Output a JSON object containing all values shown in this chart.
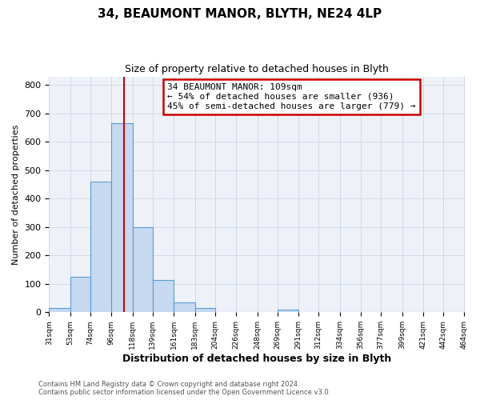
{
  "title": "34, BEAUMONT MANOR, BLYTH, NE24 4LP",
  "subtitle": "Size of property relative to detached houses in Blyth",
  "xlabel": "Distribution of detached houses by size in Blyth",
  "ylabel": "Number of detached properties",
  "bar_edges": [
    31,
    53,
    74,
    96,
    118,
    139,
    161,
    183,
    204,
    226,
    248,
    269,
    291,
    312,
    334,
    356,
    377,
    399,
    421,
    442,
    464
  ],
  "bar_heights": [
    15,
    125,
    460,
    665,
    300,
    115,
    35,
    15,
    0,
    0,
    0,
    10,
    0,
    0,
    0,
    0,
    0,
    0,
    0,
    0
  ],
  "bar_color": "#c6d9f0",
  "bar_edge_color": "#5b9bd5",
  "property_line_x": 109,
  "property_line_color": "#cc0000",
  "ylim": [
    0,
    830
  ],
  "yticks": [
    0,
    100,
    200,
    300,
    400,
    500,
    600,
    700,
    800
  ],
  "annotation_text": "34 BEAUMONT MANOR: 109sqm\n← 54% of detached houses are smaller (936)\n45% of semi-detached houses are larger (779) →",
  "annotation_box_facecolor": "#ffffff",
  "annotation_box_edgecolor": "#cc0000",
  "footer_line1": "Contains HM Land Registry data © Crown copyright and database right 2024.",
  "footer_line2": "Contains public sector information licensed under the Open Government Licence v3.0.",
  "tick_labels": [
    "31sqm",
    "53sqm",
    "74sqm",
    "96sqm",
    "118sqm",
    "139sqm",
    "161sqm",
    "183sqm",
    "204sqm",
    "226sqm",
    "248sqm",
    "269sqm",
    "291sqm",
    "312sqm",
    "334sqm",
    "356sqm",
    "377sqm",
    "399sqm",
    "421sqm",
    "442sqm",
    "464sqm"
  ],
  "grid_color": "#d0d8e8",
  "fig_background_color": "#ffffff",
  "axes_background_color": "#eef2f8"
}
